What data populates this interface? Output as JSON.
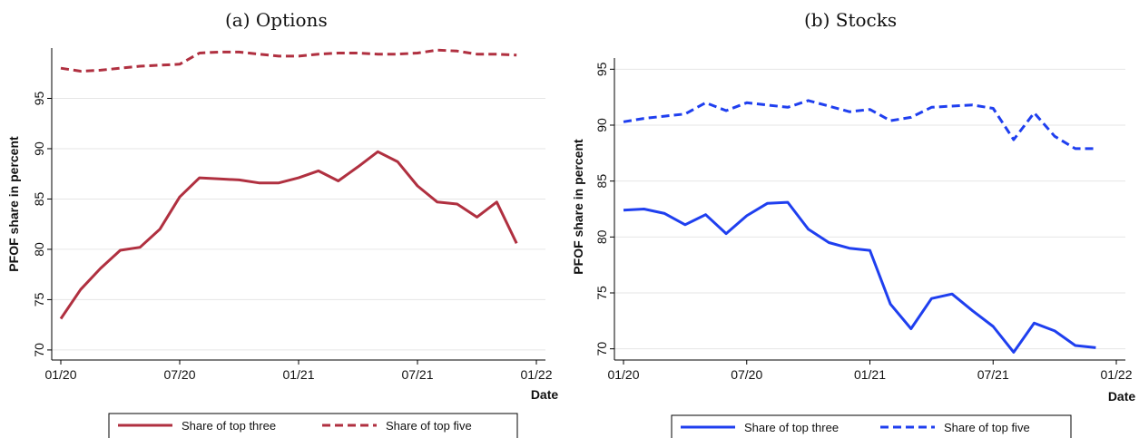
{
  "chart_data": [
    {
      "type": "line",
      "title": "(a) Options",
      "ylabel": "PFOF share in percent",
      "xlabel": "Date",
      "x_ticks": [
        "01/20",
        "07/20",
        "01/21",
        "07/21",
        "01/22"
      ],
      "y_ticks": [
        70,
        75,
        80,
        85,
        90,
        95
      ],
      "ylim": [
        69,
        100
      ],
      "xlim": [
        "2020-01",
        "2022-01"
      ],
      "grid": true,
      "legend": "bottom",
      "x": [
        "2020-01",
        "2020-02",
        "2020-03",
        "2020-04",
        "2020-05",
        "2020-06",
        "2020-07",
        "2020-08",
        "2020-09",
        "2020-10",
        "2020-11",
        "2020-12",
        "2021-01",
        "2021-02",
        "2021-03",
        "2021-04",
        "2021-05",
        "2021-06",
        "2021-07",
        "2021-08",
        "2021-09",
        "2021-10",
        "2021-11",
        "2021-12"
      ],
      "series": [
        {
          "name": "Share of top three",
          "style": "solid",
          "color": "#b03040",
          "values": [
            73.1,
            76.0,
            78.1,
            79.9,
            80.2,
            82.0,
            85.2,
            87.1,
            87.0,
            86.9,
            86.6,
            86.6,
            87.1,
            87.8,
            86.8,
            88.2,
            89.7,
            88.7,
            86.3,
            84.7,
            84.5,
            83.2,
            84.7,
            80.6
          ]
        },
        {
          "name": "Share of top five",
          "style": "dashed",
          "color": "#b03040",
          "values": [
            98.0,
            97.7,
            97.8,
            98.0,
            98.2,
            98.3,
            98.4,
            99.5,
            99.6,
            99.6,
            99.4,
            99.2,
            99.2,
            99.4,
            99.5,
            99.5,
            99.4,
            99.4,
            99.5,
            99.8,
            99.7,
            99.4,
            99.4,
            99.3
          ]
        }
      ]
    },
    {
      "type": "line",
      "title": "(b) Stocks",
      "ylabel": "PFOF share in percent",
      "xlabel": "Date",
      "x_ticks": [
        "01/20",
        "07/20",
        "01/21",
        "07/21",
        "01/22"
      ],
      "y_ticks": [
        70,
        75,
        80,
        85,
        90,
        95
      ],
      "ylim": [
        69,
        96
      ],
      "xlim": [
        "2020-01",
        "2022-01"
      ],
      "grid": true,
      "legend": "bottom",
      "x": [
        "2020-01",
        "2020-02",
        "2020-03",
        "2020-04",
        "2020-05",
        "2020-06",
        "2020-07",
        "2020-08",
        "2020-09",
        "2020-10",
        "2020-11",
        "2020-12",
        "2021-01",
        "2021-02",
        "2021-03",
        "2021-04",
        "2021-05",
        "2021-06",
        "2021-07",
        "2021-08",
        "2021-09",
        "2021-10",
        "2021-11",
        "2021-12"
      ],
      "series": [
        {
          "name": "Share of top three",
          "style": "solid",
          "color": "#1f3fef",
          "values": [
            82.4,
            82.5,
            82.1,
            81.1,
            82.0,
            80.3,
            81.9,
            83.0,
            83.1,
            80.7,
            79.5,
            79.0,
            78.8,
            74.0,
            71.8,
            74.5,
            74.9,
            73.4,
            72.0,
            69.7,
            72.3,
            71.6,
            70.3,
            70.1
          ]
        },
        {
          "name": "Share of top five",
          "style": "dashed",
          "color": "#1f3fef",
          "values": [
            90.3,
            90.6,
            90.8,
            91.0,
            92.0,
            91.3,
            92.0,
            91.8,
            91.6,
            92.2,
            91.7,
            91.2,
            91.4,
            90.4,
            90.7,
            91.6,
            91.7,
            91.8,
            91.5,
            88.7,
            91.1,
            89.0,
            87.9,
            87.9
          ]
        }
      ]
    }
  ]
}
